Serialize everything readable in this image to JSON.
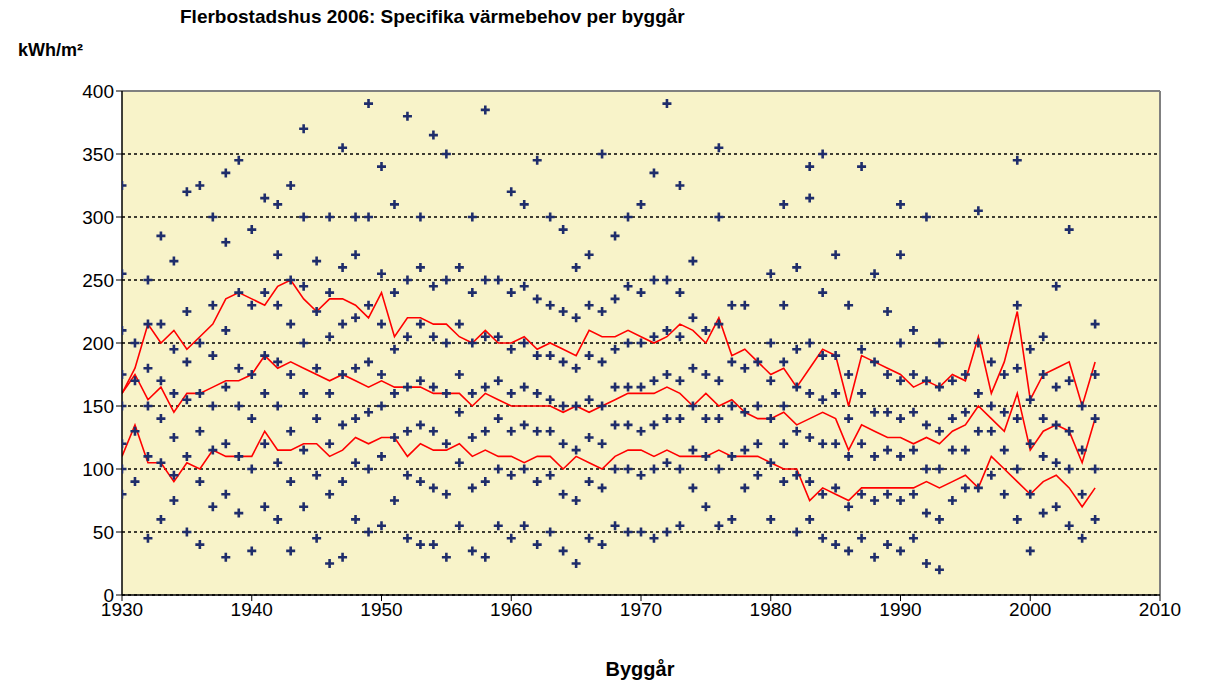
{
  "chart_data": {
    "type": "scatter",
    "title": "Flerbostadshus 2006: Specifika värmebehov per byggår",
    "x_label": "Byggår",
    "y_label": "kWh/m²",
    "xlim": [
      1930,
      2010
    ],
    "xticks": [
      1930,
      1940,
      1950,
      1960,
      1970,
      1980,
      1990,
      2000,
      2010
    ],
    "ylim": [
      0,
      400
    ],
    "yticks": [
      0,
      50,
      100,
      150,
      200,
      250,
      300,
      350,
      400
    ],
    "grid": "y",
    "x": [
      1930,
      1931,
      1932,
      1933,
      1934,
      1935,
      1936,
      1937,
      1938,
      1939,
      1940,
      1941,
      1942,
      1943,
      1944,
      1945,
      1946,
      1947,
      1948,
      1949,
      1950,
      1951,
      1952,
      1953,
      1954,
      1955,
      1956,
      1957,
      1958,
      1959,
      1960,
      1961,
      1962,
      1963,
      1964,
      1965,
      1966,
      1967,
      1968,
      1969,
      1970,
      1971,
      1972,
      1973,
      1974,
      1975,
      1976,
      1977,
      1978,
      1979,
      1980,
      1981,
      1982,
      1983,
      1984,
      1985,
      1986,
      1987,
      1988,
      1989,
      1990,
      1991,
      1992,
      1993,
      1994,
      1995,
      1996,
      1997,
      1998,
      1999,
      2000,
      2001,
      2002,
      2003,
      2004,
      2005
    ],
    "series": [
      {
        "type": "scatter",
        "color": "#1f2d6b",
        "marker": "cross",
        "x": [
          1930,
          1930,
          1930,
          1930,
          1930,
          1930,
          1930,
          1930,
          1931,
          1931,
          1931,
          1931,
          1932,
          1932,
          1932,
          1932,
          1932,
          1932,
          1933,
          1933,
          1933,
          1933,
          1933,
          1933,
          1934,
          1934,
          1934,
          1934,
          1934,
          1934,
          1935,
          1935,
          1935,
          1935,
          1935,
          1935,
          1936,
          1936,
          1936,
          1936,
          1936,
          1936,
          1937,
          1937,
          1937,
          1937,
          1937,
          1937,
          1938,
          1938,
          1938,
          1938,
          1938,
          1938,
          1938,
          1939,
          1939,
          1939,
          1939,
          1939,
          1939,
          1940,
          1940,
          1940,
          1940,
          1940,
          1940,
          1941,
          1941,
          1941,
          1941,
          1941,
          1941,
          1942,
          1942,
          1942,
          1942,
          1942,
          1942,
          1942,
          1943,
          1943,
          1943,
          1943,
          1943,
          1943,
          1943,
          1944,
          1944,
          1944,
          1944,
          1944,
          1944,
          1944,
          1945,
          1945,
          1945,
          1945,
          1945,
          1945,
          1946,
          1946,
          1946,
          1946,
          1946,
          1946,
          1946,
          1947,
          1947,
          1947,
          1947,
          1947,
          1947,
          1947,
          1948,
          1948,
          1948,
          1948,
          1948,
          1948,
          1948,
          1949,
          1949,
          1949,
          1949,
          1949,
          1949,
          1949,
          1950,
          1950,
          1950,
          1950,
          1950,
          1950,
          1950,
          1951,
          1951,
          1951,
          1951,
          1951,
          1951,
          1952,
          1952,
          1952,
          1952,
          1952,
          1952,
          1952,
          1953,
          1953,
          1953,
          1953,
          1953,
          1953,
          1953,
          1954,
          1954,
          1954,
          1954,
          1954,
          1954,
          1954,
          1955,
          1955,
          1955,
          1955,
          1955,
          1955,
          1955,
          1956,
          1956,
          1956,
          1956,
          1956,
          1956,
          1957,
          1957,
          1957,
          1957,
          1957,
          1957,
          1957,
          1958,
          1958,
          1958,
          1958,
          1958,
          1958,
          1958,
          1959,
          1959,
          1959,
          1959,
          1959,
          1959,
          1960,
          1960,
          1960,
          1960,
          1960,
          1960,
          1960,
          1961,
          1961,
          1961,
          1961,
          1961,
          1961,
          1961,
          1962,
          1962,
          1962,
          1962,
          1962,
          1962,
          1962,
          1963,
          1963,
          1963,
          1963,
          1963,
          1963,
          1963,
          1964,
          1964,
          1964,
          1964,
          1964,
          1964,
          1964,
          1965,
          1965,
          1965,
          1965,
          1965,
          1965,
          1965,
          1966,
          1966,
          1966,
          1966,
          1966,
          1966,
          1966,
          1967,
          1967,
          1967,
          1967,
          1967,
          1967,
          1967,
          1968,
          1968,
          1968,
          1968,
          1968,
          1968,
          1968,
          1969,
          1969,
          1969,
          1969,
          1969,
          1969,
          1969,
          1970,
          1970,
          1970,
          1970,
          1970,
          1970,
          1970,
          1971,
          1971,
          1971,
          1971,
          1971,
          1971,
          1971,
          1972,
          1972,
          1972,
          1972,
          1972,
          1972,
          1972,
          1973,
          1973,
          1973,
          1973,
          1973,
          1973,
          1973,
          1974,
          1974,
          1974,
          1974,
          1974,
          1974,
          1975,
          1975,
          1975,
          1975,
          1975,
          1976,
          1976,
          1976,
          1976,
          1976,
          1976,
          1976,
          1977,
          1977,
          1977,
          1977,
          1977,
          1978,
          1978,
          1978,
          1978,
          1978,
          1979,
          1979,
          1979,
          1979,
          1980,
          1980,
          1980,
          1980,
          1980,
          1980,
          1981,
          1981,
          1981,
          1981,
          1981,
          1981,
          1982,
          1982,
          1982,
          1982,
          1982,
          1982,
          1983,
          1983,
          1983,
          1983,
          1983,
          1983,
          1983,
          1984,
          1984,
          1984,
          1984,
          1984,
          1984,
          1984,
          1985,
          1985,
          1985,
          1985,
          1985,
          1985,
          1986,
          1986,
          1986,
          1986,
          1986,
          1986,
          1987,
          1987,
          1987,
          1987,
          1987,
          1987,
          1988,
          1988,
          1988,
          1988,
          1988,
          1988,
          1989,
          1989,
          1989,
          1989,
          1989,
          1989,
          1990,
          1990,
          1990,
          1990,
          1990,
          1990,
          1990,
          1990,
          1991,
          1991,
          1991,
          1991,
          1991,
          1991,
          1992,
          1992,
          1992,
          1992,
          1992,
          1992,
          1993,
          1993,
          1993,
          1993,
          1993,
          1993,
          1994,
          1994,
          1994,
          1994,
          1995,
          1995,
          1995,
          1995,
          1996,
          1996,
          1996,
          1996,
          1996,
          1997,
          1997,
          1997,
          1997,
          1998,
          1998,
          1998,
          1998,
          1999,
          1999,
          1999,
          1999,
          1999,
          1999,
          2000,
          2000,
          2000,
          2000,
          2000,
          2001,
          2001,
          2001,
          2001,
          2001,
          2002,
          2002,
          2002,
          2002,
          2002,
          2003,
          2003,
          2003,
          2003,
          2003,
          2004,
          2004,
          2004,
          2004,
          2005,
          2005,
          2005,
          2005,
          2005
        ],
        "values": [
          80,
          100,
          120,
          150,
          175,
          210,
          255,
          325,
          90,
          130,
          170,
          200,
          45,
          110,
          150,
          180,
          215,
          250,
          60,
          105,
          140,
          170,
          215,
          285,
          75,
          95,
          125,
          160,
          195,
          265,
          50,
          110,
          155,
          185,
          225,
          320,
          40,
          90,
          130,
          160,
          200,
          325,
          70,
          115,
          150,
          190,
          230,
          300,
          30,
          80,
          120,
          165,
          210,
          280,
          335,
          65,
          110,
          150,
          180,
          240,
          345,
          35,
          100,
          140,
          175,
          230,
          290,
          70,
          120,
          160,
          190,
          240,
          315,
          60,
          105,
          150,
          185,
          230,
          270,
          310,
          35,
          90,
          130,
          175,
          215,
          250,
          325,
          70,
          115,
          160,
          200,
          245,
          300,
          370,
          45,
          95,
          140,
          180,
          225,
          265,
          25,
          80,
          120,
          160,
          205,
          240,
          300,
          30,
          90,
          135,
          175,
          215,
          260,
          355,
          60,
          105,
          140,
          180,
          220,
          270,
          300,
          50,
          100,
          145,
          185,
          230,
          300,
          390,
          55,
          110,
          150,
          175,
          215,
          255,
          340,
          75,
          125,
          160,
          195,
          240,
          310,
          45,
          95,
          130,
          165,
          205,
          250,
          380,
          40,
          90,
          135,
          170,
          215,
          260,
          300,
          40,
          85,
          130,
          165,
          205,
          245,
          365,
          30,
          80,
          120,
          160,
          200,
          250,
          350,
          55,
          105,
          145,
          175,
          215,
          260,
          35,
          85,
          125,
          160,
          200,
          240,
          300,
          30,
          90,
          130,
          165,
          205,
          250,
          385,
          55,
          100,
          140,
          170,
          205,
          250,
          45,
          95,
          130,
          160,
          195,
          240,
          320,
          55,
          100,
          135,
          165,
          200,
          245,
          310,
          40,
          90,
          130,
          160,
          190,
          235,
          345,
          50,
          95,
          130,
          155,
          190,
          230,
          300,
          35,
          80,
          120,
          150,
          185,
          225,
          290,
          25,
          75,
          115,
          150,
          180,
          220,
          260,
          45,
          90,
          125,
          155,
          190,
          230,
          270,
          40,
          85,
          120,
          150,
          185,
          225,
          350,
          55,
          100,
          135,
          165,
          195,
          235,
          285,
          50,
          100,
          135,
          165,
          200,
          245,
          300,
          50,
          95,
          130,
          165,
          200,
          240,
          310,
          45,
          100,
          135,
          170,
          205,
          250,
          335,
          50,
          105,
          140,
          175,
          210,
          250,
          390,
          55,
          100,
          140,
          170,
          205,
          240,
          325,
          85,
          115,
          150,
          180,
          220,
          265,
          70,
          110,
          140,
          175,
          210,
          55,
          100,
          140,
          170,
          215,
          300,
          355,
          60,
          110,
          150,
          185,
          230,
          85,
          115,
          145,
          180,
          230,
          95,
          120,
          150,
          185,
          60,
          105,
          140,
          170,
          200,
          255,
          90,
          120,
          150,
          185,
          230,
          310,
          50,
          95,
          130,
          165,
          195,
          260,
          60,
          90,
          125,
          160,
          200,
          315,
          340,
          45,
          80,
          120,
          155,
          190,
          240,
          350,
          40,
          85,
          120,
          160,
          190,
          270,
          35,
          70,
          110,
          140,
          175,
          230,
          45,
          80,
          120,
          160,
          195,
          340,
          30,
          75,
          110,
          145,
          185,
          255,
          40,
          80,
          115,
          145,
          175,
          225,
          35,
          75,
          110,
          140,
          170,
          200,
          270,
          310,
          45,
          80,
          115,
          145,
          175,
          210,
          25,
          65,
          100,
          135,
          170,
          300,
          20,
          60,
          100,
          130,
          165,
          200,
          75,
          115,
          140,
          170,
          85,
          115,
          145,
          175,
          85,
          130,
          160,
          200,
          305,
          95,
          130,
          150,
          185,
          80,
          115,
          145,
          175,
          60,
          100,
          140,
          180,
          230,
          345,
          35,
          80,
          120,
          155,
          195,
          65,
          110,
          140,
          175,
          205,
          70,
          105,
          135,
          165,
          245,
          55,
          100,
          130,
          170,
          290,
          45,
          80,
          115,
          150,
          60,
          100,
          140,
          175,
          215
        ]
      },
      {
        "type": "line",
        "color": "#ff0000",
        "values": [
          160,
          180,
          215,
          200,
          210,
          195,
          205,
          215,
          235,
          240,
          235,
          230,
          245,
          250,
          235,
          225,
          235,
          235,
          230,
          220,
          240,
          205,
          220,
          220,
          215,
          215,
          205,
          200,
          210,
          200,
          200,
          205,
          195,
          200,
          195,
          190,
          210,
          205,
          205,
          210,
          205,
          200,
          205,
          215,
          210,
          200,
          220,
          190,
          195,
          185,
          175,
          180,
          165,
          180,
          195,
          190,
          150,
          190,
          185,
          180,
          175,
          165,
          170,
          165,
          175,
          170,
          205,
          160,
          185,
          225,
          155,
          175,
          180,
          185,
          150,
          185
        ]
      },
      {
        "type": "line",
        "color": "#ff0000",
        "values": [
          160,
          175,
          155,
          165,
          145,
          160,
          160,
          165,
          170,
          170,
          175,
          190,
          180,
          185,
          180,
          175,
          170,
          175,
          170,
          165,
          170,
          165,
          165,
          165,
          160,
          160,
          160,
          150,
          160,
          155,
          150,
          150,
          150,
          150,
          145,
          150,
          145,
          150,
          155,
          160,
          160,
          160,
          165,
          160,
          150,
          160,
          150,
          155,
          145,
          140,
          140,
          145,
          135,
          140,
          145,
          140,
          115,
          135,
          130,
          125,
          125,
          120,
          125,
          120,
          130,
          135,
          150,
          140,
          130,
          160,
          115,
          130,
          135,
          130,
          105,
          140
        ]
      },
      {
        "type": "line",
        "color": "#ff0000",
        "values": [
          110,
          135,
          105,
          105,
          90,
          105,
          100,
          115,
          110,
          110,
          110,
          130,
          115,
          115,
          120,
          120,
          110,
          115,
          125,
          120,
          125,
          125,
          110,
          120,
          115,
          115,
          120,
          110,
          115,
          110,
          110,
          105,
          110,
          110,
          100,
          110,
          105,
          100,
          110,
          115,
          115,
          110,
          115,
          110,
          110,
          110,
          115,
          110,
          110,
          110,
          105,
          100,
          100,
          75,
          85,
          80,
          75,
          85,
          85,
          85,
          85,
          85,
          90,
          85,
          90,
          95,
          85,
          110,
          100,
          90,
          80,
          90,
          95,
          85,
          70,
          85
        ]
      }
    ]
  }
}
